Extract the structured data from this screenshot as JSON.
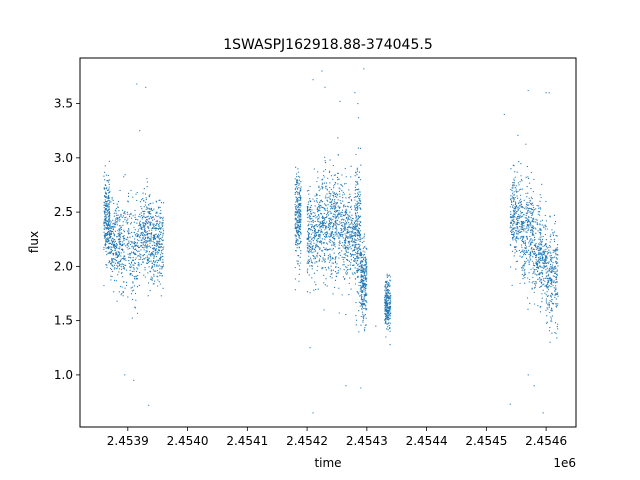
{
  "chart_data": {
    "type": "scatter",
    "title": "1SWASPJ162918.88-374045.5",
    "xlabel": "time",
    "ylabel": "flux",
    "x_offset_label": "1e6",
    "x_unit_multiplier": 1000000,
    "xlim": [
      2.45382,
      2.45465
    ],
    "ylim": [
      0.52,
      3.92
    ],
    "xticks": [
      2.4539,
      2.454,
      2.4541,
      2.4542,
      2.4543,
      2.4544,
      2.4545,
      2.4546
    ],
    "xtick_labels": [
      "2.4539",
      "2.4540",
      "2.4541",
      "2.4542",
      "2.4543",
      "2.4544",
      "2.4545",
      "2.4546"
    ],
    "yticks": [
      1.0,
      1.5,
      2.0,
      2.5,
      3.0,
      3.5
    ],
    "ytick_labels": [
      "1.0",
      "1.5",
      "2.0",
      "2.5",
      "3.0",
      "3.5"
    ],
    "grid": false,
    "marker_color": "#1f77b4",
    "marker": "point",
    "series": [
      {
        "values_note": "",
        "clusters": [
          {
            "x_range": [
              2.45386,
              2.45387
            ],
            "median": 2.45,
            "spread": 0.18
          },
          {
            "x_range": [
              2.45387,
              2.45389
            ],
            "median": 2.2,
            "spread": 0.18
          },
          {
            "x_range": [
              2.45389,
              2.45392
            ],
            "median": 2.15,
            "spread": 0.22
          },
          {
            "x_range": [
              2.45392,
              2.45394
            ],
            "median": 2.3,
            "spread": 0.2
          },
          {
            "x_range": [
              2.45394,
              2.45396
            ],
            "median": 2.2,
            "spread": 0.18
          },
          {
            "x_range": [
              2.45418,
              2.45419
            ],
            "median": 2.45,
            "spread": 0.2
          },
          {
            "x_range": [
              2.4542,
              2.45422
            ],
            "median": 2.3,
            "spread": 0.22
          },
          {
            "x_range": [
              2.45422,
              2.45424
            ],
            "median": 2.35,
            "spread": 0.25
          },
          {
            "x_range": [
              2.45424,
              2.45426
            ],
            "median": 2.4,
            "spread": 0.25
          },
          {
            "x_range": [
              2.45426,
              2.45428
            ],
            "median": 2.3,
            "spread": 0.22
          },
          {
            "x_range": [
              2.45428,
              2.45429
            ],
            "median": 2.3,
            "spread": 0.3
          },
          {
            "x_range": [
              2.45429,
              2.4543
            ],
            "median": 1.85,
            "spread": 0.18
          },
          {
            "x_range": [
              2.45433,
              2.45434
            ],
            "median": 1.65,
            "spread": 0.12
          },
          {
            "x_range": [
              2.45454,
              2.45456
            ],
            "median": 2.45,
            "spread": 0.2
          },
          {
            "x_range": [
              2.45456,
              2.45458
            ],
            "median": 2.3,
            "spread": 0.25
          },
          {
            "x_range": [
              2.45458,
              2.4546
            ],
            "median": 2.1,
            "spread": 0.22
          },
          {
            "x_range": [
              2.4546,
              2.45462
            ],
            "median": 1.9,
            "spread": 0.22
          }
        ],
        "outliers": [
          [
            2.453895,
            1.0
          ],
          [
            2.453915,
            3.68
          ],
          [
            2.45393,
            3.65
          ],
          [
            2.453935,
            0.72
          ],
          [
            2.45391,
            0.95
          ],
          [
            2.45392,
            3.25
          ],
          [
            2.45421,
            3.72
          ],
          [
            2.454205,
            1.25
          ],
          [
            2.454225,
            3.8
          ],
          [
            2.45423,
            3.65
          ],
          [
            2.45421,
            0.65
          ],
          [
            2.454255,
            3.52
          ],
          [
            2.454265,
            0.9
          ],
          [
            2.45428,
            3.6
          ],
          [
            2.454285,
            3.5
          ],
          [
            2.45429,
            0.88
          ],
          [
            2.454295,
            3.82
          ],
          [
            2.454315,
            1.45
          ],
          [
            2.45453,
            3.4
          ],
          [
            2.45454,
            0.73
          ],
          [
            2.45457,
            3.62
          ],
          [
            2.45458,
            0.9
          ],
          [
            2.4546,
            3.6
          ],
          [
            2.454595,
            0.65
          ],
          [
            2.454605,
            3.6
          ],
          [
            2.45457,
            1.0
          ]
        ]
      }
    ]
  }
}
